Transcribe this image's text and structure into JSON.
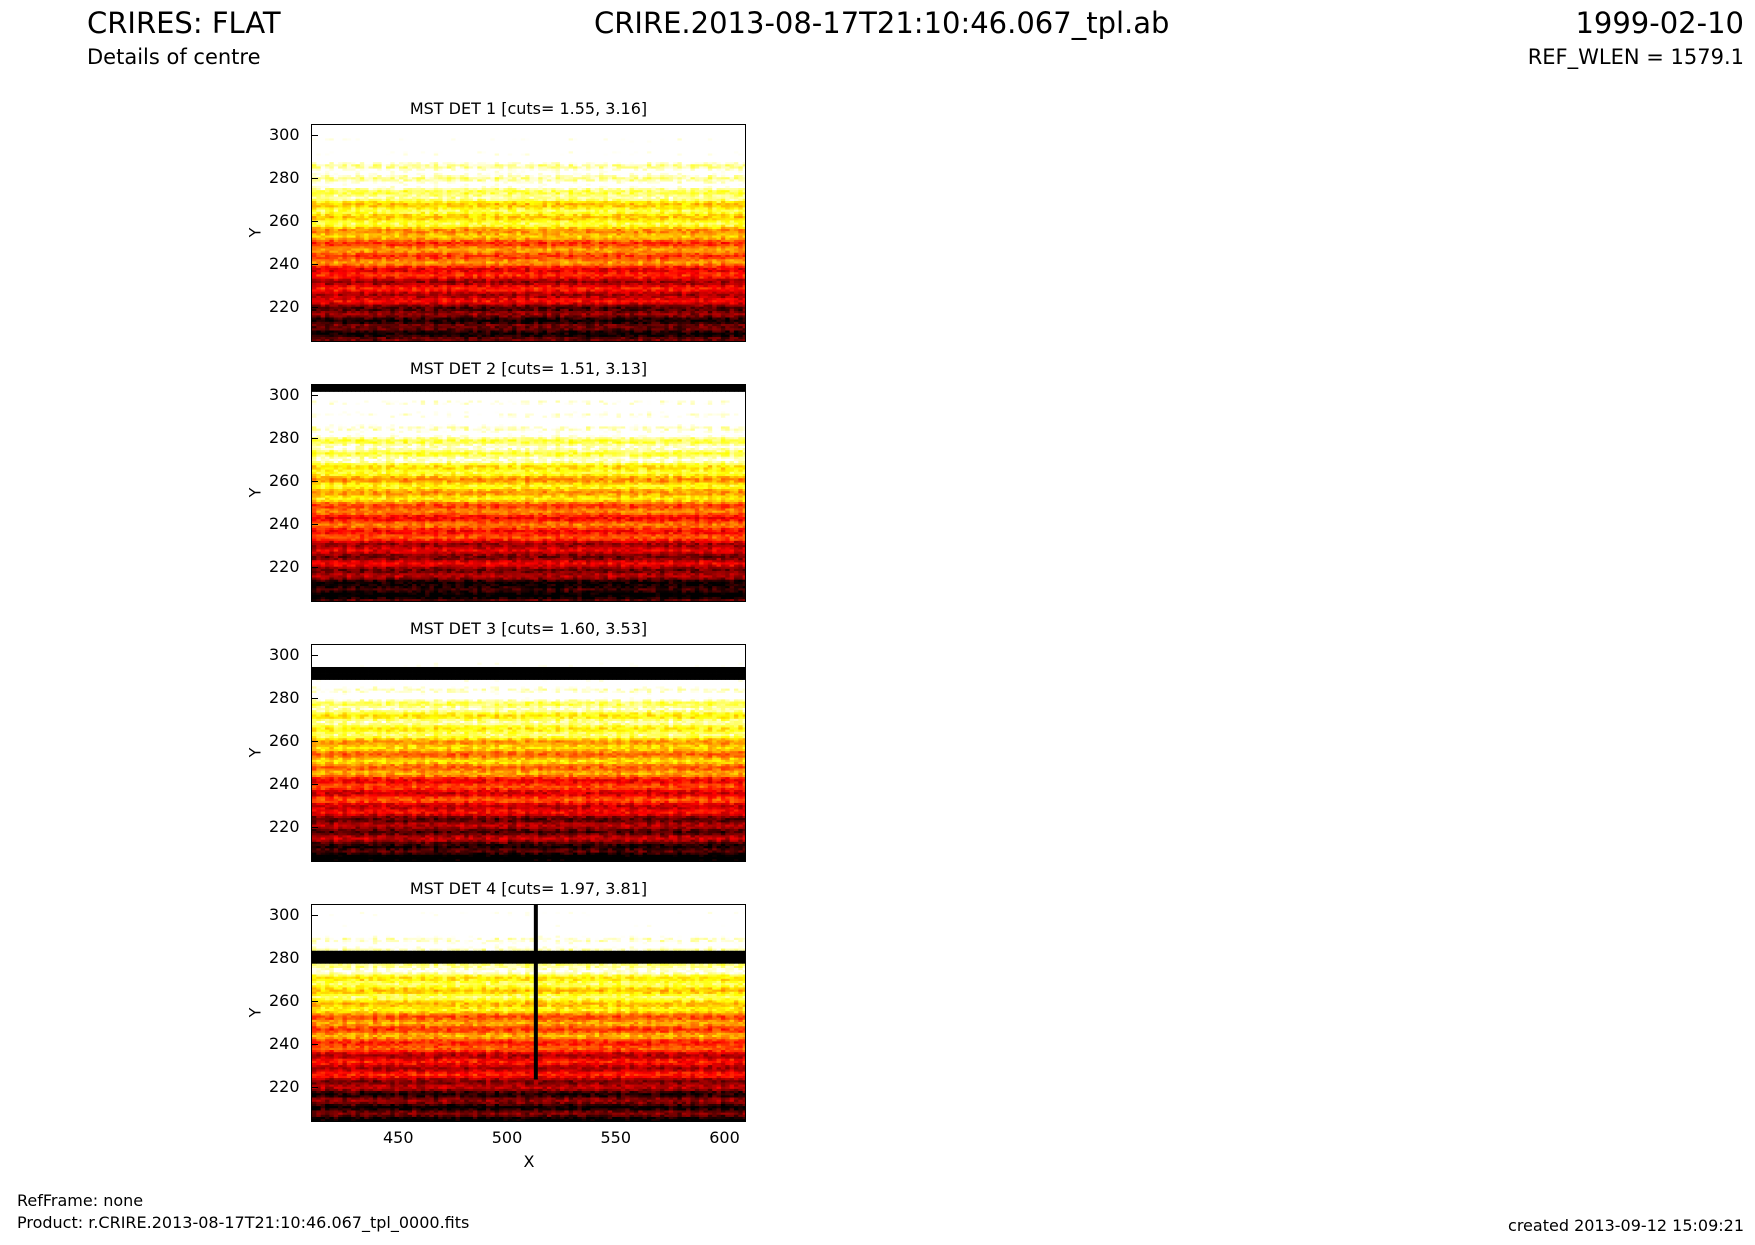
{
  "header": {
    "title_left": "CRIRES: FLAT",
    "subtitle_left": "Details of centre",
    "title_center": "CRIRE.2013-08-17T21:10:46.067_tpl.ab",
    "date_right": "1999-02-10",
    "ref_wlen": "REF_WLEN = 1579.1"
  },
  "footer": {
    "refframe": "RefFrame: none",
    "product": "Product: r.CRIRE.2013-08-17T21:10:46.067_tpl_0000.fits",
    "created": "created 2013-09-12 15:09:21"
  },
  "chart_data": [
    {
      "type": "heatmap",
      "title": "MST DET 1 [cuts= 1.55, 3.16]",
      "ylabel": "Y",
      "xlabel": "",
      "xlim": [
        410,
        610
      ],
      "ylim": [
        204,
        305
      ],
      "yticks": [
        220,
        240,
        260,
        280,
        300
      ],
      "xticks": [],
      "colormap": "hot",
      "bad_rows": []
    },
    {
      "type": "heatmap",
      "title": "MST DET 2 [cuts= 1.51, 3.13]",
      "ylabel": "Y",
      "xlabel": "",
      "xlim": [
        410,
        610
      ],
      "ylim": [
        204,
        305
      ],
      "yticks": [
        220,
        240,
        260,
        280,
        300
      ],
      "xticks": [],
      "colormap": "hot",
      "bad_rows": [
        [
          302,
          305
        ]
      ]
    },
    {
      "type": "heatmap",
      "title": "MST DET 3 [cuts= 1.60, 3.53]",
      "ylabel": "Y",
      "xlabel": "",
      "xlim": [
        410,
        610
      ],
      "ylim": [
        204,
        305
      ],
      "yticks": [
        220,
        240,
        260,
        280,
        300
      ],
      "xticks": [],
      "colormap": "hot",
      "bad_rows": [
        [
          289,
          295
        ]
      ]
    },
    {
      "type": "heatmap",
      "title": "MST DET 4 [cuts= 1.97, 3.81]",
      "ylabel": "Y",
      "xlabel": "X",
      "xlim": [
        410,
        610
      ],
      "ylim": [
        204,
        305
      ],
      "yticks": [
        220,
        240,
        260,
        280,
        300
      ],
      "xticks": [
        450,
        500,
        550,
        600
      ],
      "colormap": "hot",
      "bad_rows": [
        [
          278,
          284
        ]
      ],
      "bad_column_x": 512
    }
  ],
  "colors": {
    "background": "#ffffff",
    "axis": "#000000"
  }
}
